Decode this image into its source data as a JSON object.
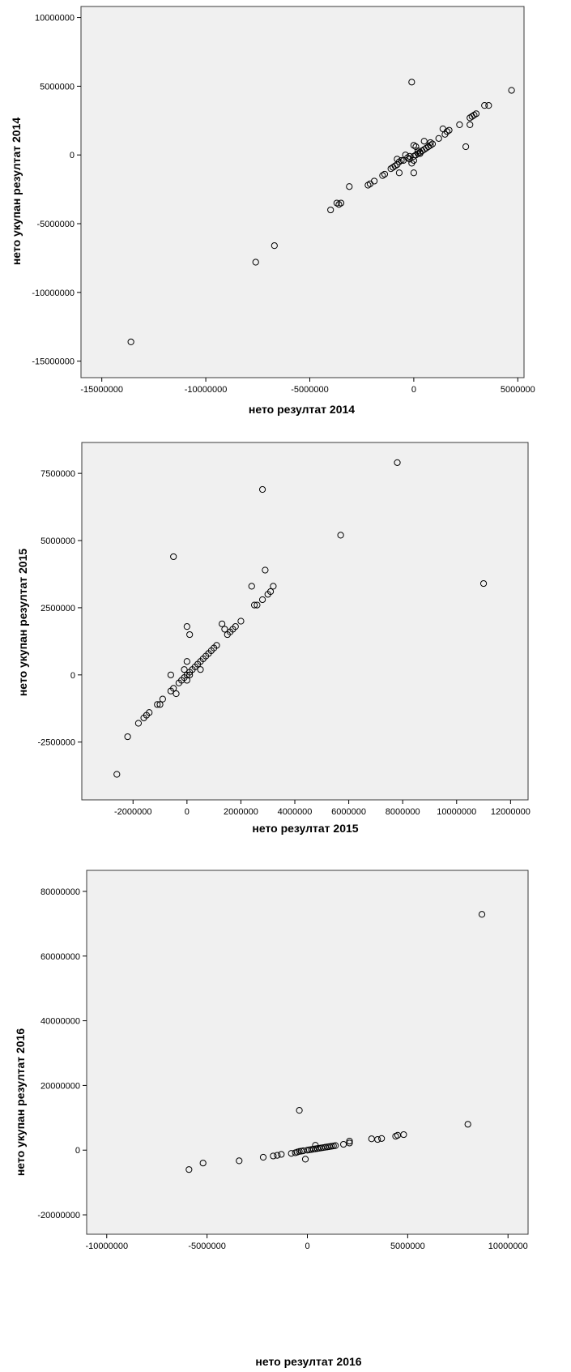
{
  "chart_data": [
    {
      "type": "scatter",
      "xlabel": "нето резултат 2014",
      "ylabel": "нето укупан резултат 2014",
      "xlim": [
        -16000000,
        5300000
      ],
      "ylim": [
        -16200000,
        10800000
      ],
      "xticks": [
        -15000000,
        -10000000,
        -5000000,
        0,
        5000000
      ],
      "yticks": [
        -15000000,
        -10000000,
        -5000000,
        0,
        5000000,
        10000000
      ],
      "xtick_labels": [
        "-15000000",
        "-10000000",
        "-5000000",
        "0",
        "5000000"
      ],
      "ytick_labels": [
        "-15000000",
        "-10000000",
        "-5000000",
        "0",
        "5000000",
        "10000000"
      ],
      "grid": false,
      "points": [
        [
          -13600000,
          -13600000
        ],
        [
          -7600000,
          -7800000
        ],
        [
          -6700000,
          -6600000
        ],
        [
          -4000000,
          -4000000
        ],
        [
          -3700000,
          -3500000
        ],
        [
          -3500000,
          -3500000
        ],
        [
          -3600000,
          -3600000
        ],
        [
          -3100000,
          -2300000
        ],
        [
          -2200000,
          -2200000
        ],
        [
          -2100000,
          -2100000
        ],
        [
          -1900000,
          -1900000
        ],
        [
          -1500000,
          -1500000
        ],
        [
          -1400000,
          -1400000
        ],
        [
          -1100000,
          -1000000
        ],
        [
          -1000000,
          -900000
        ],
        [
          -900000,
          -800000
        ],
        [
          -800000,
          -700000
        ],
        [
          -700000,
          -500000
        ],
        [
          -600000,
          -400000
        ],
        [
          -500000,
          -400000
        ],
        [
          -400000,
          0
        ],
        [
          -300000,
          -200000
        ],
        [
          -200000,
          -300000
        ],
        [
          -100000,
          -600000
        ],
        [
          -100000,
          5300000
        ],
        [
          0,
          -1300000
        ],
        [
          0,
          -400000
        ],
        [
          -200000,
          -100000
        ],
        [
          0,
          -100000
        ],
        [
          100000,
          0
        ],
        [
          200000,
          100000
        ],
        [
          300000,
          200000
        ],
        [
          400000,
          300000
        ],
        [
          500000,
          400000
        ],
        [
          600000,
          500000
        ],
        [
          700000,
          600000
        ],
        [
          800000,
          700000
        ],
        [
          900000,
          800000
        ],
        [
          0,
          700000
        ],
        [
          100000,
          600000
        ],
        [
          200000,
          300000
        ],
        [
          300000,
          100000
        ],
        [
          500000,
          1000000
        ],
        [
          800000,
          900000
        ],
        [
          -700000,
          -1300000
        ],
        [
          -800000,
          -300000
        ],
        [
          1200000,
          1200000
        ],
        [
          1400000,
          1900000
        ],
        [
          1500000,
          1500000
        ],
        [
          1600000,
          1700000
        ],
        [
          1700000,
          1800000
        ],
        [
          2200000,
          2200000
        ],
        [
          2500000,
          600000
        ],
        [
          2700000,
          2200000
        ],
        [
          2700000,
          2700000
        ],
        [
          2800000,
          2800000
        ],
        [
          2900000,
          2900000
        ],
        [
          3000000,
          3000000
        ],
        [
          3400000,
          3600000
        ],
        [
          3600000,
          3600000
        ],
        [
          4700000,
          4700000
        ]
      ]
    },
    {
      "type": "scatter",
      "xlabel": "нето резултат 2015",
      "ylabel": "нето укупан резултат 2015",
      "xlim": [
        -3900000,
        12650000
      ],
      "ylim": [
        -4650000,
        8650000
      ],
      "xticks": [
        -2000000,
        0,
        2000000,
        4000000,
        6000000,
        8000000,
        10000000,
        12000000
      ],
      "yticks": [
        -2500000,
        0,
        2500000,
        5000000,
        7500000
      ],
      "xtick_labels": [
        "-2000000",
        "0",
        "2000000",
        "4000000",
        "6000000",
        "8000000",
        "10000000",
        "12000000"
      ],
      "ytick_labels": [
        "-2500000",
        "0",
        "2500000",
        "5000000",
        "7500000"
      ],
      "grid": false,
      "points": [
        [
          -2600000,
          -3700000
        ],
        [
          -2200000,
          -2300000
        ],
        [
          -1800000,
          -1800000
        ],
        [
          -1600000,
          -1600000
        ],
        [
          -1500000,
          -1500000
        ],
        [
          -1400000,
          -1400000
        ],
        [
          -1100000,
          -1100000
        ],
        [
          -1000000,
          -1100000
        ],
        [
          -900000,
          -900000
        ],
        [
          -600000,
          -600000
        ],
        [
          -500000,
          -500000
        ],
        [
          -400000,
          -700000
        ],
        [
          -500000,
          4400000
        ],
        [
          -600000,
          0
        ],
        [
          -300000,
          -300000
        ],
        [
          -200000,
          -200000
        ],
        [
          -100000,
          -100000
        ],
        [
          0,
          0
        ],
        [
          100000,
          100000
        ],
        [
          200000,
          200000
        ],
        [
          300000,
          300000
        ],
        [
          400000,
          400000
        ],
        [
          500000,
          500000
        ],
        [
          600000,
          600000
        ],
        [
          700000,
          700000
        ],
        [
          800000,
          800000
        ],
        [
          0,
          1800000
        ],
        [
          100000,
          1500000
        ],
        [
          0,
          500000
        ],
        [
          100000,
          0
        ],
        [
          500000,
          200000
        ],
        [
          -100000,
          200000
        ],
        [
          0,
          -200000
        ],
        [
          900000,
          900000
        ],
        [
          1000000,
          1000000
        ],
        [
          1100000,
          1100000
        ],
        [
          1300000,
          1900000
        ],
        [
          1400000,
          1700000
        ],
        [
          1500000,
          1500000
        ],
        [
          1600000,
          1600000
        ],
        [
          1700000,
          1700000
        ],
        [
          1800000,
          1800000
        ],
        [
          2000000,
          2000000
        ],
        [
          2400000,
          3300000
        ],
        [
          2500000,
          2600000
        ],
        [
          2600000,
          2600000
        ],
        [
          2800000,
          2800000
        ],
        [
          2900000,
          3900000
        ],
        [
          3000000,
          3000000
        ],
        [
          3100000,
          3100000
        ],
        [
          3200000,
          3300000
        ],
        [
          2800000,
          6900000
        ],
        [
          5700000,
          5200000
        ],
        [
          7800000,
          7900000
        ],
        [
          11000000,
          3400000
        ]
      ]
    },
    {
      "type": "scatter",
      "xlabel": "нето резултат 2016",
      "ylabel": "нето укупан резултат 2016",
      "xlim": [
        -11000000,
        11000000
      ],
      "ylim": [
        -26000000,
        86500000
      ],
      "xticks": [
        -10000000,
        -5000000,
        0,
        5000000,
        10000000
      ],
      "yticks": [
        -20000000,
        0,
        20000000,
        40000000,
        60000000,
        80000000
      ],
      "xtick_labels": [
        "-10000000",
        "-5000000",
        "0",
        "5000000",
        "10000000"
      ],
      "ytick_labels": [
        "-20000000",
        "0",
        "20000000",
        "40000000",
        "60000000",
        "80000000"
      ],
      "grid": false,
      "points": [
        [
          -5900000,
          -6000000
        ],
        [
          -5200000,
          -4000000
        ],
        [
          -3400000,
          -3300000
        ],
        [
          -2200000,
          -2200000
        ],
        [
          -1700000,
          -1800000
        ],
        [
          -1500000,
          -1600000
        ],
        [
          -1300000,
          -1300000
        ],
        [
          -800000,
          -1000000
        ],
        [
          -600000,
          -800000
        ],
        [
          -500000,
          -600000
        ],
        [
          -400000,
          -400000
        ],
        [
          -300000,
          -300000
        ],
        [
          -200000,
          -200000
        ],
        [
          -100000,
          -2800000
        ],
        [
          -400000,
          12300000
        ],
        [
          0,
          0
        ],
        [
          100000,
          100000
        ],
        [
          200000,
          200000
        ],
        [
          300000,
          300000
        ],
        [
          400000,
          400000
        ],
        [
          500000,
          500000
        ],
        [
          600000,
          600000
        ],
        [
          700000,
          700000
        ],
        [
          800000,
          800000
        ],
        [
          900000,
          900000
        ],
        [
          1000000,
          1000000
        ],
        [
          1100000,
          1100000
        ],
        [
          1200000,
          1200000
        ],
        [
          1300000,
          1300000
        ],
        [
          1400000,
          1400000
        ],
        [
          400000,
          1500000
        ],
        [
          1800000,
          1800000
        ],
        [
          2100000,
          2200000
        ],
        [
          2100000,
          2800000
        ],
        [
          3200000,
          3500000
        ],
        [
          3500000,
          3300000
        ],
        [
          3700000,
          3600000
        ],
        [
          4400000,
          4300000
        ],
        [
          4500000,
          4600000
        ],
        [
          4800000,
          4800000
        ],
        [
          8000000,
          8000000
        ],
        [
          8700000,
          72900000
        ]
      ]
    }
  ]
}
